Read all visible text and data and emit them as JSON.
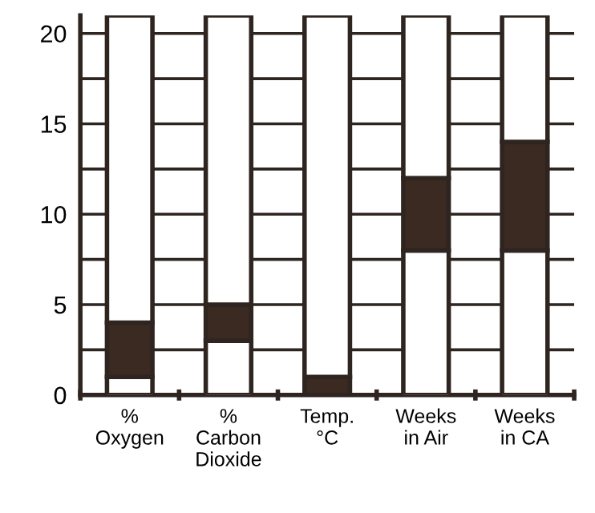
{
  "chart_data": {
    "type": "bar",
    "categories": [
      "%\nOxygen",
      "%\nCarbon\nDioxide",
      "Temp.\n°C",
      "Weeks\nin Air",
      "Weeks\nin CA"
    ],
    "stacked": true,
    "series": [
      {
        "color": "#ffffff",
        "values": [
          1,
          3,
          0,
          8,
          8
        ]
      },
      {
        "color": "#3a2a22",
        "values": [
          3,
          2,
          1,
          4,
          6
        ]
      },
      {
        "color": "#ffffff",
        "values": [
          17,
          16,
          20,
          9,
          7
        ]
      }
    ],
    "ylim": [
      0,
      21
    ],
    "yticks": [
      0,
      {
        "value": 2.5,
        "label": null
      },
      5,
      {
        "value": 7.5,
        "label": null
      },
      10,
      {
        "value": 12.5,
        "label": null
      },
      15,
      {
        "value": 17.5,
        "label": null
      },
      20
    ],
    "grid": "y"
  }
}
